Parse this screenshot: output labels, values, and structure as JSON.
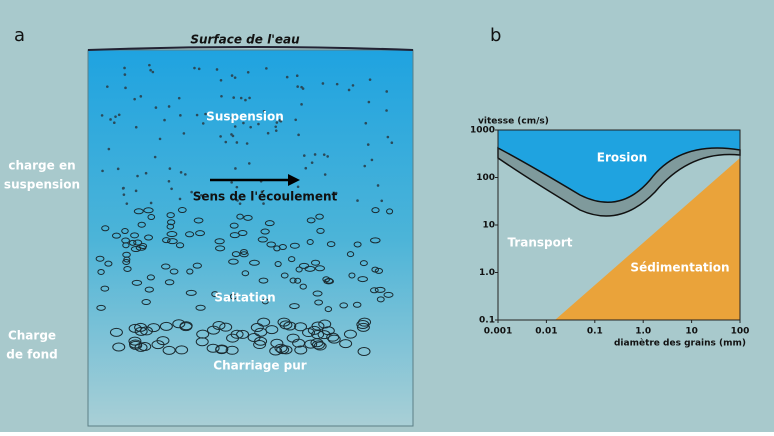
{
  "panel_a": {
    "label": "a",
    "surface": "Surface de l'eau",
    "suspension": "Suspension",
    "flow": "Sens de l'écoulement",
    "saltation": "Saltation",
    "bedload": "Charriage pur",
    "left_labels": [
      "charge en",
      "suspension",
      "Charge",
      "de fond"
    ]
  },
  "panel_b": {
    "label": "b",
    "y_label": "vitesse (cm/s)",
    "x_label": "diamètre des grains (mm)",
    "regions": [
      "Erosion",
      "Transport",
      "Sédimentation"
    ],
    "xticks": [
      0.001,
      0.01,
      0.1,
      {
        "value": 1,
        "label": "1.0"
      },
      10,
      100
    ],
    "yticks": [
      1000,
      100,
      10,
      {
        "value": 1,
        "label": "1.0"
      },
      0.1
    ],
    "xlim": [
      0.001,
      100
    ],
    "ylim": [
      0.1,
      1000
    ]
  }
}
